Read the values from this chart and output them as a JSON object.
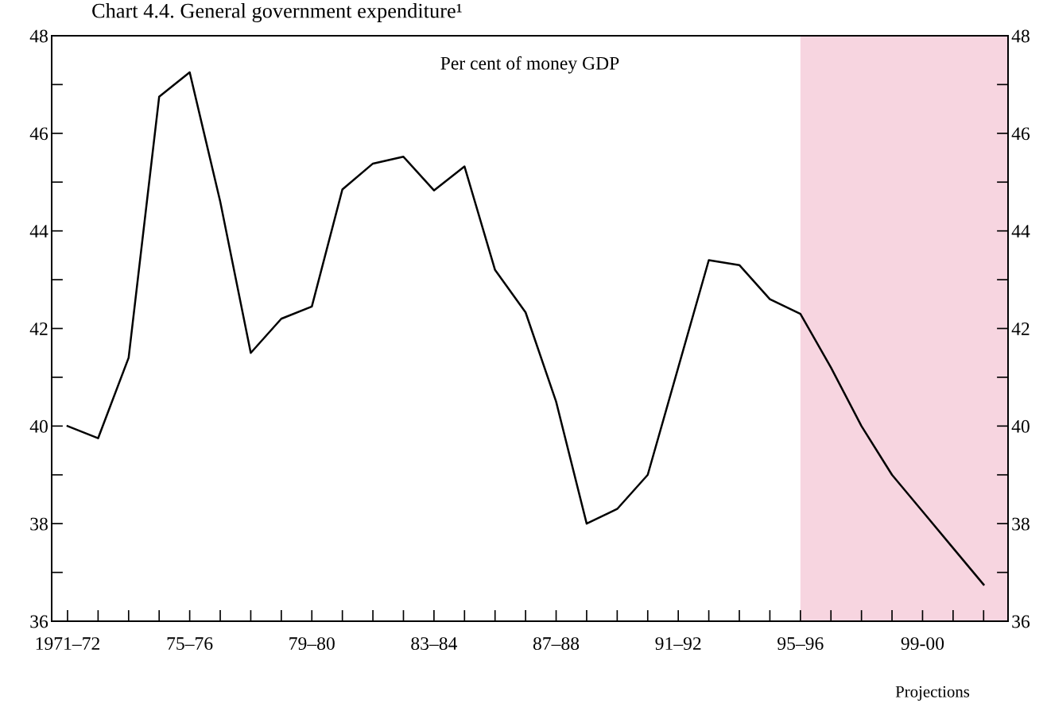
{
  "chart_data": {
    "type": "line",
    "title": "Chart 4.4. General government expenditure¹",
    "subtitle": "Per cent of money GDP",
    "categories": [
      "1971–72",
      null,
      null,
      null,
      "75–76",
      null,
      null,
      null,
      "79–80",
      null,
      null,
      null,
      "83–84",
      null,
      null,
      null,
      "87–88",
      null,
      null,
      null,
      "91–92",
      null,
      null,
      null,
      "95–96",
      null,
      null,
      null,
      "99-00",
      null,
      null
    ],
    "series": [
      {
        "color": "#000000",
        "values": [
          40.0,
          39.75,
          41.4,
          46.75,
          47.25,
          44.6,
          41.5,
          42.2,
          42.45,
          44.85,
          45.38,
          45.52,
          44.83,
          45.32,
          43.2,
          42.33,
          40.5,
          38.0,
          38.3,
          39.0,
          41.2,
          43.4,
          43.3,
          42.6,
          42.3,
          41.2,
          40.0,
          39.0,
          38.25,
          37.5,
          36.75
        ]
      }
    ],
    "ylim": [
      36,
      48
    ],
    "yticks": [
      36,
      {
        "value": 37,
        "label": null
      },
      38,
      {
        "value": 39,
        "label": null
      },
      40,
      {
        "value": 41,
        "label": null
      },
      42,
      {
        "value": 43,
        "label": null
      },
      44,
      {
        "value": 45,
        "label": null
      },
      46,
      {
        "value": 47,
        "label": null
      },
      48
    ],
    "y2lim": [
      36,
      48
    ],
    "y2ticks": [
      36,
      {
        "value": 37,
        "label": null
      },
      38,
      {
        "value": 39,
        "label": null
      },
      40,
      {
        "value": 41,
        "label": null
      },
      42,
      {
        "value": 43,
        "label": null
      },
      44,
      {
        "value": 45,
        "label": null
      },
      46,
      {
        "value": 47,
        "label": null
      },
      48
    ],
    "annotations": [
      "Projections"
    ],
    "grid": false,
    "legend": false,
    "marker": "none",
    "line_style": "solid"
  }
}
